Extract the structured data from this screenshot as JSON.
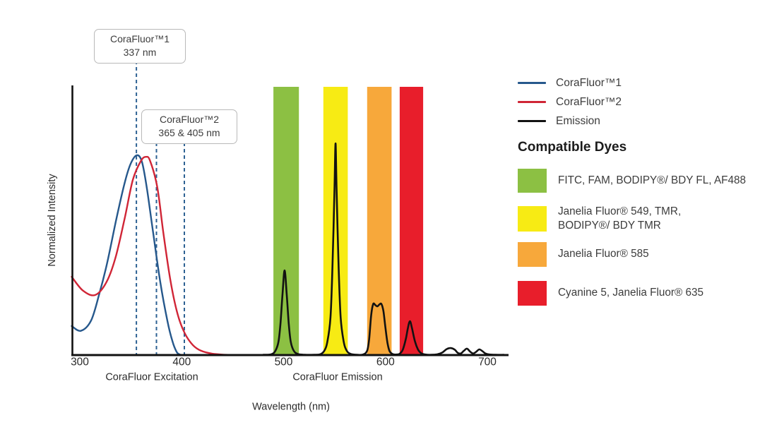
{
  "chart_data": {
    "type": "line",
    "title": "",
    "xlabel": "Wavelength (nm)",
    "ylabel": "Normalized Intensity",
    "x_ticks": [
      300,
      400,
      500,
      600,
      700
    ],
    "xlim": [
      292,
      721
    ],
    "ylim": [
      0,
      1
    ],
    "grid": false,
    "legend_position": "right",
    "axis_color": "#111111",
    "annotation_line_color": "#2e6293",
    "x_axis_group_labels": [
      {
        "text": "CoraFluor Excitation",
        "center_nm": 371
      },
      {
        "text": "CoraFluor Emission",
        "center_nm": 553
      }
    ],
    "annotations": [
      {
        "title": "CoraFluor™1",
        "subtitle": "337 nm",
        "marker_lines_nm": [
          355.5
        ]
      },
      {
        "title": "CoraFluor™2",
        "subtitle": "365 & 405 nm",
        "marker_lines_nm": [
          375.2,
          402.6
        ]
      }
    ],
    "filter_bands": [
      {
        "label": "FITC, FAM, BODIPY®/ BDY FL, AF488",
        "color": "#8cc043",
        "range_nm": [
          490,
          515
        ]
      },
      {
        "label": "Janelia Fluor® 549, TMR, BODIPY®/ BDY TMR",
        "color": "#f7eb14",
        "range_nm": [
          539,
          563
        ]
      },
      {
        "label": "Janelia Fluor® 585",
        "color": "#f7a83b",
        "range_nm": [
          582,
          606
        ]
      },
      {
        "label": "Cyanine 5, Janelia Fluor® 635",
        "color": "#e81e2b",
        "range_nm": [
          614,
          637
        ]
      }
    ],
    "series": [
      {
        "key": "corafluor1",
        "name": "CoraFluor™1",
        "color": "#26588c",
        "width": 2.4,
        "points": [
          [
            292,
            0.108
          ],
          [
            301,
            0.09
          ],
          [
            311,
            0.128
          ],
          [
            319,
            0.226
          ],
          [
            327,
            0.345
          ],
          [
            336,
            0.508
          ],
          [
            344,
            0.64
          ],
          [
            350,
            0.712
          ],
          [
            356,
            0.743
          ],
          [
            361,
            0.718
          ],
          [
            366,
            0.616
          ],
          [
            372,
            0.454
          ],
          [
            379,
            0.27
          ],
          [
            386,
            0.126
          ],
          [
            391,
            0.05
          ],
          [
            395,
            0.012
          ],
          [
            398,
            0.002
          ],
          [
            401,
            0
          ]
        ]
      },
      {
        "key": "corafluor2",
        "name": "CoraFluor™2",
        "color": "#d02536",
        "width": 2.4,
        "points": [
          [
            292,
            0.291
          ],
          [
            303,
            0.24
          ],
          [
            315,
            0.223
          ],
          [
            326,
            0.27
          ],
          [
            335,
            0.362
          ],
          [
            344,
            0.508
          ],
          [
            352,
            0.651
          ],
          [
            360,
            0.722
          ],
          [
            365,
            0.737
          ],
          [
            369,
            0.722
          ],
          [
            376,
            0.625
          ],
          [
            382,
            0.454
          ],
          [
            389,
            0.276
          ],
          [
            396,
            0.152
          ],
          [
            403,
            0.081
          ],
          [
            411,
            0.037
          ],
          [
            419,
            0.016
          ],
          [
            430,
            0.005
          ],
          [
            443,
            0.001
          ],
          [
            450,
            0
          ]
        ]
      },
      {
        "key": "emission",
        "name": "Emission",
        "color": "#121212",
        "width": 2.6,
        "points": [
          [
            480,
            0.001
          ],
          [
            488,
            0.003
          ],
          [
            492,
            0.016
          ],
          [
            495,
            0.05
          ],
          [
            497,
            0.12
          ],
          [
            499,
            0.23
          ],
          [
            501,
            0.315
          ],
          [
            503,
            0.23
          ],
          [
            505,
            0.12
          ],
          [
            507,
            0.05
          ],
          [
            510,
            0.016
          ],
          [
            514,
            0.004
          ],
          [
            521,
            0.001
          ],
          [
            530,
            0.001
          ],
          [
            536,
            0.003
          ],
          [
            540,
            0.016
          ],
          [
            543,
            0.05
          ],
          [
            546,
            0.14
          ],
          [
            548,
            0.33
          ],
          [
            550,
            0.62
          ],
          [
            551,
            0.787
          ],
          [
            552,
            0.62
          ],
          [
            554,
            0.33
          ],
          [
            556,
            0.14
          ],
          [
            559,
            0.05
          ],
          [
            562,
            0.016
          ],
          [
            566,
            0.004
          ],
          [
            572,
            0.001
          ],
          [
            578,
            0.002
          ],
          [
            582,
            0.016
          ],
          [
            584,
            0.06
          ],
          [
            586,
            0.15
          ],
          [
            588,
            0.19
          ],
          [
            590,
            0.186
          ],
          [
            592,
            0.181
          ],
          [
            594,
            0.188
          ],
          [
            596,
            0.19
          ],
          [
            598,
            0.163
          ],
          [
            600,
            0.1
          ],
          [
            602,
            0.045
          ],
          [
            604,
            0.015
          ],
          [
            607,
            0.004
          ],
          [
            611,
            0.002
          ],
          [
            614,
            0.005
          ],
          [
            617,
            0.02
          ],
          [
            620,
            0.06
          ],
          [
            622,
            0.1
          ],
          [
            624,
            0.126
          ],
          [
            626,
            0.1
          ],
          [
            629,
            0.05
          ],
          [
            632,
            0.02
          ],
          [
            635,
            0.007
          ],
          [
            639,
            0.002
          ],
          [
            645,
            0.001
          ],
          [
            651,
            0.003
          ],
          [
            656,
            0.01
          ],
          [
            660,
            0.022
          ],
          [
            664,
            0.026
          ],
          [
            668,
            0.02
          ],
          [
            671,
            0.008
          ],
          [
            674,
            0.006
          ],
          [
            677,
            0.016
          ],
          [
            680,
            0.024
          ],
          [
            683,
            0.013
          ],
          [
            686,
            0.006
          ],
          [
            689,
            0.012
          ],
          [
            692,
            0.021
          ],
          [
            695,
            0.015
          ],
          [
            698,
            0.006
          ],
          [
            702,
            0.002
          ],
          [
            708,
            0.001
          ],
          [
            716,
            0.001
          ]
        ]
      }
    ]
  },
  "legend": {
    "items": [
      {
        "label": "CoraFluor™1",
        "color": "#26588c"
      },
      {
        "label": "CoraFluor™2",
        "color": "#d02536"
      },
      {
        "label": "Emission",
        "color": "#121212"
      }
    ]
  },
  "dyes": {
    "heading": "Compatible Dyes",
    "items": [
      {
        "label": "FITC, FAM, BODIPY®/ BDY FL, AF488",
        "color": "#8cc043"
      },
      {
        "label": "Janelia Fluor® 549, TMR,\nBODIPY®/ BDY TMR",
        "color": "#f7eb14"
      },
      {
        "label": "Janelia Fluor® 585",
        "color": "#f7a83b"
      },
      {
        "label": "Cyanine 5, Janelia Fluor® 635",
        "color": "#e81e2b"
      }
    ]
  }
}
